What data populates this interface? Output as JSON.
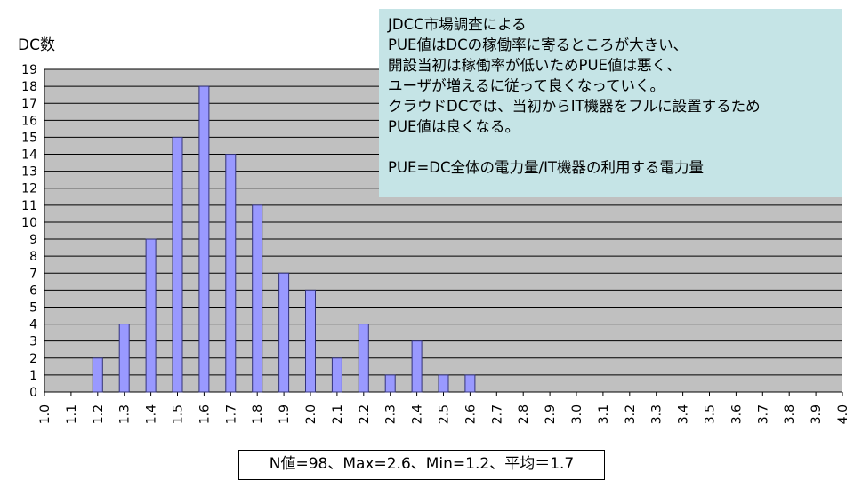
{
  "chart_data": {
    "type": "bar",
    "title": "",
    "ylabel": "DC数",
    "xlabel": "",
    "ylim": [
      0,
      19
    ],
    "x_ticks": [
      "1.0",
      "1.1",
      "1.2",
      "1.3",
      "1.4",
      "1.5",
      "1.6",
      "1.7",
      "1.8",
      "1.9",
      "2.0",
      "2.1",
      "2.2",
      "2.3",
      "2.4",
      "2.5",
      "2.6",
      "2.7",
      "2.8",
      "2.9",
      "3.0",
      "3.1",
      "3.2",
      "3.3",
      "3.4",
      "3.5",
      "3.6",
      "3.7",
      "3.8",
      "3.9",
      "4.0"
    ],
    "y_ticks": [
      0,
      1,
      2,
      3,
      4,
      5,
      6,
      7,
      8,
      9,
      10,
      11,
      12,
      13,
      14,
      15,
      16,
      17,
      18,
      19
    ],
    "categories": [
      "1.2",
      "1.3",
      "1.4",
      "1.5",
      "1.6",
      "1.7",
      "1.8",
      "1.9",
      "2.0",
      "2.1",
      "2.2",
      "2.3",
      "2.4",
      "2.5",
      "2.6"
    ],
    "values": [
      2,
      4,
      9,
      15,
      18,
      14,
      11,
      7,
      6,
      2,
      4,
      1,
      3,
      1,
      1
    ],
    "grid": true,
    "colors": {
      "bar_fill": "#9999ff",
      "bar_stroke": "#33337a",
      "plot_background": "#c0c0c0",
      "gridline": "#000000",
      "annotation_background": "#c5e4e6"
    }
  },
  "annotation": {
    "lines": [
      "JDCC市場調査による",
      "PUE値はDCの稼働率に寄るところが大きい、",
      "開設当初は稼働率が低いためPUE値は悪く、",
      "ユーザが増えるに従って良くなっていく。",
      "クラウドDCでは、当初からIT機器をフルに設置するため",
      "PUE値は良くなる。",
      "",
      "PUE=DC全体の電力量/IT機器の利用する電力量"
    ]
  },
  "summary": "N値=98、Max=2.6、Min=1.2、平均＝1.7"
}
